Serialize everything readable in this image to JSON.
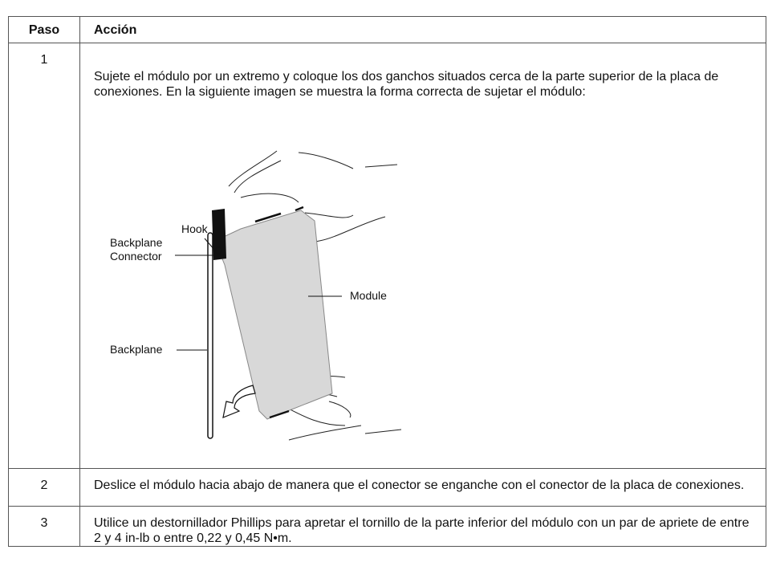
{
  "header": {
    "paso": "Paso",
    "accion": "Acción"
  },
  "rows": [
    {
      "step": "1",
      "text": "Sujete el módulo por un extremo y coloque los dos ganchos situados cerca de la parte superior de la placa de conexiones. En la siguiente imagen se muestra la forma correcta de sujetar el módulo:"
    },
    {
      "step": "2",
      "text": "Deslice el módulo hacia abajo de manera que el conector se enganche con el conector de la placa de conexiones."
    },
    {
      "step": "3",
      "text": "Utilice un destornillador Phillips para apretar el tornillo de la parte inferior del módulo con un par de apriete de entre 2 y 4 in-lb o entre 0,22 y 0,45 N•m."
    }
  ],
  "figure": {
    "hook": "Hook",
    "backplane_connector": [
      "Backplane",
      "Connector"
    ],
    "module": "Module",
    "backplane": "Backplane"
  }
}
